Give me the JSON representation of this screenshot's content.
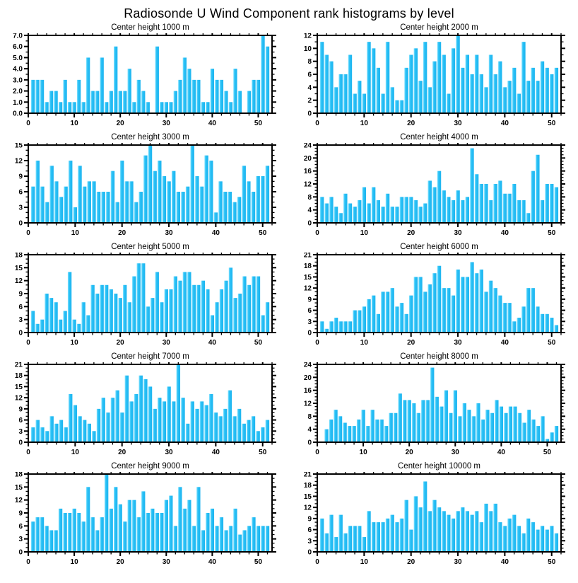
{
  "figure": {
    "title": "Radiosonde U Wind Component rank histograms by level",
    "background": "#ffffff",
    "axis_color": "#000000",
    "bar_fill": "#29c1f6",
    "bar_highlight": "#8ce4ff",
    "bar_shade": "#1db4ef"
  },
  "chart_data": [
    {
      "type": "bar",
      "title": "Center height 1000 m",
      "xlabel": "",
      "ylabel": "",
      "x_major_ticks": [
        0,
        10,
        20,
        30,
        40,
        50
      ],
      "x_minor_interval": 2,
      "ylim": [
        0,
        7
      ],
      "ytick_step": 1,
      "ylabel_decimals": 1,
      "yminor_per_major": 1,
      "grid": false,
      "legend": "none",
      "values": [
        3,
        3,
        3,
        1,
        2,
        2,
        1,
        3,
        1,
        1,
        3,
        1,
        5,
        2,
        2,
        5,
        1,
        2,
        6,
        2,
        2,
        4,
        1,
        3,
        2,
        1,
        0,
        6,
        1,
        1,
        1,
        2,
        3,
        5,
        4,
        3,
        3,
        1,
        1,
        4,
        3,
        3,
        2,
        1,
        4,
        2,
        0,
        2,
        3,
        3,
        7,
        6
      ]
    },
    {
      "type": "bar",
      "title": "Center height 2000 m",
      "xlabel": "",
      "ylabel": "",
      "x_major_ticks": [
        0,
        10,
        20,
        30,
        40,
        50
      ],
      "x_minor_interval": 2,
      "ylim": [
        0,
        12
      ],
      "ytick_step": 2,
      "ylabel_decimals": 0,
      "yminor_per_major": 1,
      "grid": false,
      "legend": "none",
      "values": [
        11,
        9,
        8,
        4,
        6,
        6,
        9,
        3,
        5,
        3,
        11,
        10,
        7,
        3,
        11,
        4,
        2,
        2,
        7,
        9,
        10,
        5,
        11,
        4,
        8,
        11,
        9,
        3,
        10,
        12,
        7,
        9,
        6,
        9,
        6,
        4,
        9,
        6,
        8,
        4,
        5,
        7,
        3,
        11,
        5,
        7,
        5,
        8,
        7,
        6,
        7
      ]
    },
    {
      "type": "bar",
      "title": "Center height 3000 m",
      "xlabel": "",
      "ylabel": "",
      "x_major_ticks": [
        0,
        10,
        20,
        30,
        40,
        50
      ],
      "x_minor_interval": 2,
      "ylim": [
        0,
        15
      ],
      "ytick_step": 3,
      "ylabel_decimals": 0,
      "yminor_per_major": 2,
      "grid": false,
      "legend": "none",
      "values": [
        7,
        12,
        7,
        4,
        11,
        8,
        5,
        7,
        12,
        3,
        11,
        7,
        8,
        8,
        6,
        6,
        6,
        10,
        4,
        12,
        8,
        8,
        4,
        6,
        13,
        15,
        10,
        12,
        9,
        8,
        10,
        6,
        6,
        7,
        15,
        9,
        7,
        13,
        12,
        2,
        8,
        6,
        6,
        4,
        5,
        11,
        8,
        6,
        9,
        9,
        11
      ]
    },
    {
      "type": "bar",
      "title": "Center height 4000 m",
      "xlabel": "",
      "ylabel": "",
      "x_major_ticks": [
        0,
        10,
        20,
        30,
        40,
        50
      ],
      "x_minor_interval": 2,
      "ylim": [
        0,
        24
      ],
      "ytick_step": 4,
      "ylabel_decimals": 0,
      "yminor_per_major": 3,
      "grid": false,
      "legend": "none",
      "values": [
        8,
        6,
        8,
        5,
        3,
        9,
        6,
        5,
        7,
        11,
        6,
        11,
        7,
        5,
        9,
        5,
        5,
        8,
        8,
        8,
        7,
        5,
        6,
        13,
        11,
        16,
        10,
        8,
        7,
        10,
        7,
        8,
        23,
        15,
        12,
        12,
        7,
        12,
        13,
        9,
        9,
        12,
        7,
        7,
        3,
        16,
        21,
        7,
        12,
        12,
        11
      ]
    },
    {
      "type": "bar",
      "title": "Center height 5000 m",
      "xlabel": "",
      "ylabel": "",
      "x_major_ticks": [
        0,
        10,
        20,
        30,
        40,
        50
      ],
      "x_minor_interval": 2,
      "ylim": [
        0,
        18
      ],
      "ytick_step": 3,
      "ylabel_decimals": 0,
      "yminor_per_major": 2,
      "grid": false,
      "legend": "none",
      "values": [
        5,
        2,
        3,
        9,
        8,
        7,
        3,
        5,
        14,
        3,
        2,
        7,
        4,
        11,
        9,
        11,
        11,
        10,
        9,
        8,
        11,
        7,
        13,
        16,
        16,
        6,
        8,
        14,
        7,
        10,
        10,
        13,
        12,
        14,
        14,
        11,
        11,
        12,
        10,
        4,
        7,
        10,
        12,
        15,
        8,
        9,
        13,
        11,
        13,
        13,
        4,
        7
      ]
    },
    {
      "type": "bar",
      "title": "Center height 6000 m",
      "xlabel": "",
      "ylabel": "",
      "x_major_ticks": [
        0,
        10,
        20,
        30,
        40,
        50
      ],
      "x_minor_interval": 2,
      "ylim": [
        0,
        21
      ],
      "ytick_step": 3,
      "ylabel_decimals": 0,
      "yminor_per_major": 2,
      "grid": false,
      "legend": "none",
      "values": [
        3,
        1,
        3,
        4,
        3,
        3,
        3,
        6,
        6,
        7,
        9,
        10,
        5,
        11,
        11,
        12,
        7,
        8,
        5,
        10,
        15,
        15,
        11,
        13,
        16,
        18,
        12,
        12,
        10,
        17,
        15,
        15,
        19,
        16,
        17,
        11,
        14,
        12,
        10,
        8,
        8,
        3,
        4,
        7,
        12,
        12,
        7,
        5,
        5,
        4,
        2
      ]
    },
    {
      "type": "bar",
      "title": "Center height 7000 m",
      "xlabel": "",
      "ylabel": "",
      "x_major_ticks": [
        0,
        10,
        20,
        30,
        40,
        50
      ],
      "x_minor_interval": 2,
      "ylim": [
        0,
        21
      ],
      "ytick_step": 3,
      "ylabel_decimals": 0,
      "yminor_per_major": 2,
      "grid": false,
      "legend": "none",
      "values": [
        4,
        6,
        4,
        3,
        7,
        5,
        6,
        4,
        13,
        10,
        7,
        6,
        5,
        3,
        9,
        12,
        8,
        12,
        14,
        8,
        18,
        11,
        13,
        18,
        17,
        15,
        9,
        12,
        11,
        15,
        11,
        21,
        12,
        5,
        11,
        9,
        11,
        10,
        13,
        8,
        7,
        9,
        14,
        7,
        9,
        5,
        6,
        7,
        3,
        4,
        6
      ]
    },
    {
      "type": "bar",
      "title": "Center height 8000 m",
      "xlabel": "",
      "ylabel": "",
      "x_major_ticks": [
        0,
        10,
        20,
        30,
        40,
        50
      ],
      "x_minor_interval": 2,
      "ylim": [
        0,
        24
      ],
      "ytick_step": 4,
      "ylabel_decimals": 0,
      "yminor_per_major": 3,
      "grid": false,
      "legend": "none",
      "values": [
        0,
        4,
        7,
        10,
        8,
        6,
        5,
        5,
        7,
        10,
        5,
        10,
        7,
        7,
        5,
        9,
        9,
        15,
        13,
        13,
        12,
        9,
        13,
        13,
        23,
        14,
        11,
        16,
        9,
        16,
        8,
        12,
        10,
        8,
        12,
        7,
        10,
        9,
        13,
        11,
        9,
        11,
        11,
        9,
        6,
        10,
        7,
        5,
        8,
        1,
        3,
        5
      ]
    },
    {
      "type": "bar",
      "title": "Center height 9000 m",
      "xlabel": "",
      "ylabel": "",
      "x_major_ticks": [
        0,
        10,
        20,
        30,
        40,
        50
      ],
      "x_minor_interval": 2,
      "ylim": [
        0,
        18
      ],
      "ytick_step": 3,
      "ylabel_decimals": 0,
      "yminor_per_major": 2,
      "grid": false,
      "legend": "none",
      "values": [
        7,
        8,
        8,
        6,
        5,
        5,
        10,
        9,
        9,
        10,
        9,
        7,
        15,
        8,
        5,
        8,
        18,
        10,
        15,
        11,
        7,
        12,
        12,
        8,
        14,
        9,
        10,
        9,
        9,
        12,
        13,
        6,
        15,
        10,
        12,
        6,
        15,
        5,
        9,
        10,
        6,
        8,
        5,
        6,
        10,
        4,
        5,
        6,
        8,
        6,
        6,
        6
      ]
    },
    {
      "type": "bar",
      "title": "Center height 10000 m",
      "xlabel": "",
      "ylabel": "",
      "x_major_ticks": [
        0,
        10,
        20,
        30,
        40,
        50
      ],
      "x_minor_interval": 2,
      "ylim": [
        0,
        21
      ],
      "ytick_step": 3,
      "ylabel_decimals": 0,
      "yminor_per_major": 2,
      "grid": false,
      "legend": "none",
      "values": [
        9,
        5,
        10,
        4,
        10,
        5,
        7,
        7,
        7,
        4,
        11,
        8,
        8,
        8,
        9,
        10,
        8,
        9,
        14,
        6,
        15,
        12,
        19,
        11,
        14,
        12,
        11,
        10,
        9,
        11,
        12,
        11,
        10,
        11,
        8,
        13,
        11,
        13,
        8,
        7,
        9,
        10,
        7,
        5,
        9,
        8,
        6,
        7,
        6,
        7,
        5
      ]
    }
  ]
}
